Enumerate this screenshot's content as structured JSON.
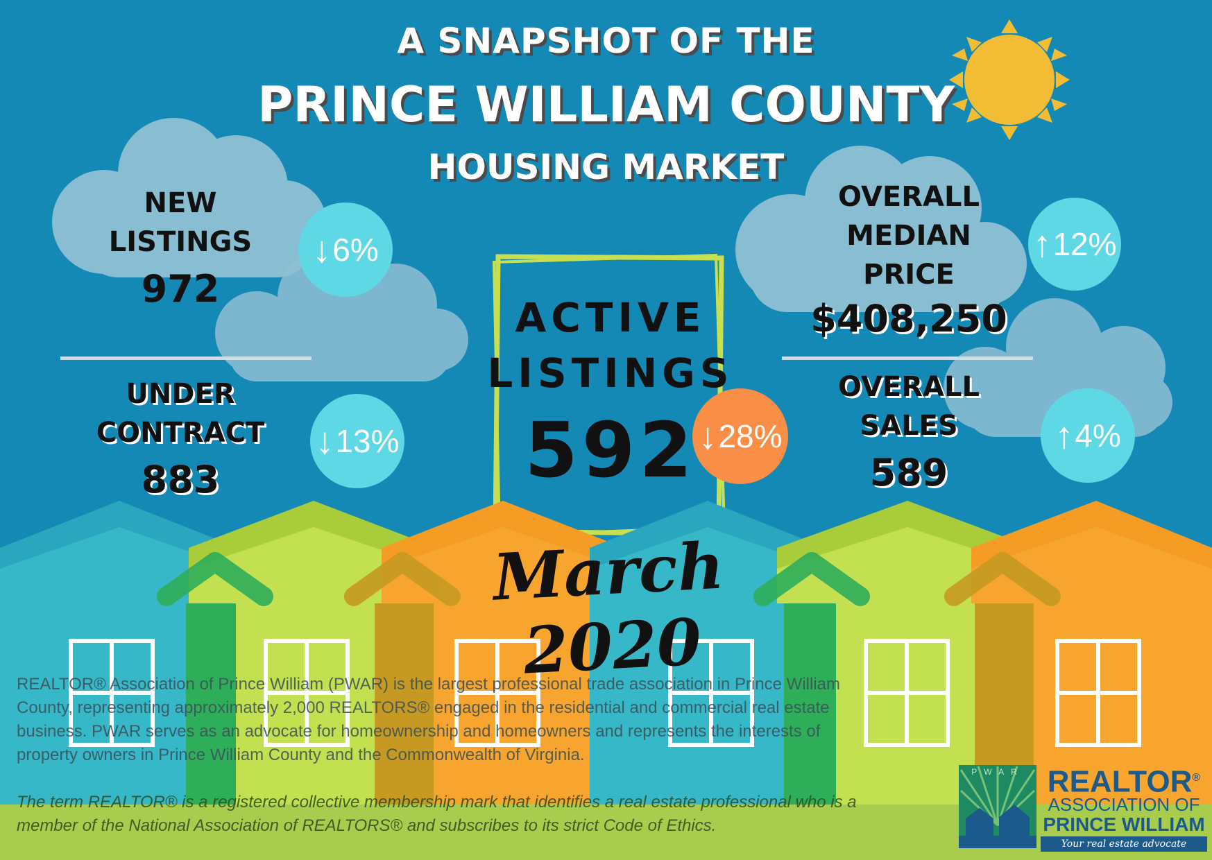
{
  "header": {
    "line1": "A SNAPSHOT OF THE",
    "line2": "PRINCE WILLIAM COUNTY",
    "line3": "HOUSING MARKET"
  },
  "stats": {
    "new_listings": {
      "label_line1": "NEW",
      "label_line2": "LISTINGS",
      "value": "972",
      "change_arrow": "↓",
      "change": "6%",
      "direction": "down"
    },
    "under_contract": {
      "label_line1": "UNDER",
      "label_line2": "CONTRACT",
      "value": "883",
      "change_arrow": "↓",
      "change": "13%",
      "direction": "down"
    },
    "active_listings": {
      "label_line1": "ACTIVE",
      "label_line2": "LISTINGS",
      "value": "592",
      "change_arrow": "↓",
      "change": "28%",
      "direction": "down"
    },
    "median_price": {
      "label_line1": "OVERALL",
      "label_line2": "MEDIAN",
      "label_line3": "PRICE",
      "value": "$408,250",
      "change_arrow": "↑",
      "change": "12%",
      "direction": "up"
    },
    "overall_sales": {
      "label_line1": "OVERALL",
      "label_line2": "SALES",
      "value": "589",
      "change_arrow": "↑",
      "change": "4%",
      "direction": "up"
    }
  },
  "period": "March 2020",
  "about": "REALTOR® Association of Prince William (PWAR) is the largest professional trade association in Prince William County, representing approximately 2,000 REALTORS® engaged in the residential and commercial real estate business. PWAR serves as an advocate for homeownership and homeowners and represents the interests of property owners in Prince William County and the Commonwealth of Virginia.",
  "trademark_note": "The term REALTOR® is a registered collective membership mark that identifies a real estate professional who is a member of the National Association of REALTORS® and subscribes to its strict Code of Ethics.",
  "logo": {
    "mark_text": "PWAR",
    "line1": "REALTOR",
    "registered": "®",
    "line2": "ASSOCIATION OF",
    "line3": "PRINCE WILLIAM",
    "tagline": "Your real estate advocate"
  },
  "colors": {
    "sky": "#1589b5",
    "cloud": "#8fc0d4",
    "sun": "#f2bd35",
    "badge_cyan": "#5ed8e4",
    "badge_orange": "#f98e46",
    "frame": "#c8e050",
    "house_teal": "#36b8c8",
    "house_lime": "#c2e050",
    "house_orange": "#f7a52e",
    "grass": "#a8cc4e"
  },
  "icons": [
    "sun-icon",
    "cloud-icon",
    "house-icon",
    "window-icon",
    "arrow-up-icon",
    "arrow-down-icon"
  ]
}
